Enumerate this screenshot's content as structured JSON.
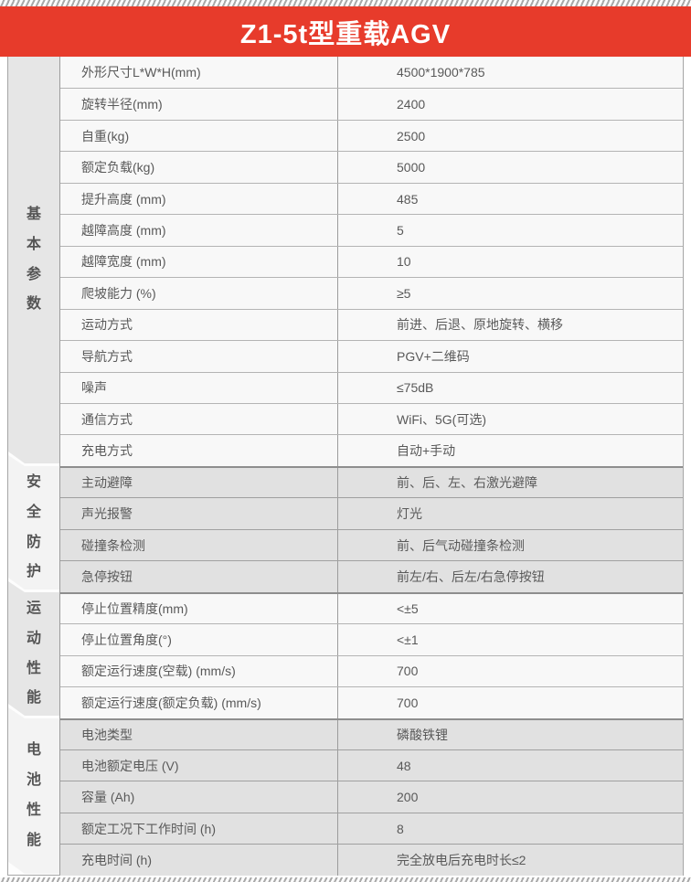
{
  "title": "Z1-5t型重载AGV",
  "sections": [
    {
      "category": "基本参数",
      "rows": [
        {
          "param": "外形尺寸L*W*H(mm)",
          "value": "4500*1900*785"
        },
        {
          "param": "旋转半径(mm)",
          "value": "2400"
        },
        {
          "param": "自重(kg)",
          "value": "2500"
        },
        {
          "param": "额定负载(kg)",
          "value": "5000"
        },
        {
          "param": "提升高度 (mm)",
          "value": "485"
        },
        {
          "param": "越障高度 (mm)",
          "value": "5"
        },
        {
          "param": "越障宽度 (mm)",
          "value": "10"
        },
        {
          "param": "爬坡能力 (%)",
          "value": "≥5"
        },
        {
          "param": "运动方式",
          "value": "前进、后退、原地旋转、横移"
        },
        {
          "param": "导航方式",
          "value": "PGV+二维码"
        },
        {
          "param": "噪声",
          "value": "≤75dB"
        },
        {
          "param": "通信方式",
          "value": "WiFi、5G(可选)"
        },
        {
          "param": "充电方式",
          "value": "自动+手动"
        }
      ]
    },
    {
      "category": "安全防护",
      "rows": [
        {
          "param": "主动避障",
          "value": "前、后、左、右激光避障"
        },
        {
          "param": "声光报警",
          "value": "灯光"
        },
        {
          "param": "碰撞条检测",
          "value": "前、后气动碰撞条检测"
        },
        {
          "param": "急停按钮",
          "value": "前左/右、后左/右急停按钮"
        }
      ]
    },
    {
      "category": "运动性能",
      "rows": [
        {
          "param": "停止位置精度(mm)",
          "value": "<±5"
        },
        {
          "param": "停止位置角度(°)",
          "value": "<±1"
        },
        {
          "param": "额定运行速度(空载) (mm/s)",
          "value": "700"
        },
        {
          "param": "额定运行速度(额定负载) (mm/s)",
          "value": "700"
        }
      ]
    },
    {
      "category": "电池性能",
      "rows": [
        {
          "param": "电池类型",
          "value": "磷酸铁锂"
        },
        {
          "param": "电池额定电压 (V)",
          "value": "48"
        },
        {
          "param": "容量 (Ah)",
          "value": "200"
        },
        {
          "param": "额定工况下工作时间 (h)",
          "value": "8"
        },
        {
          "param": "充电时间 (h)",
          "value": "完全放电后充电时长≤2"
        }
      ]
    }
  ],
  "accent_color": "#e73b2b"
}
